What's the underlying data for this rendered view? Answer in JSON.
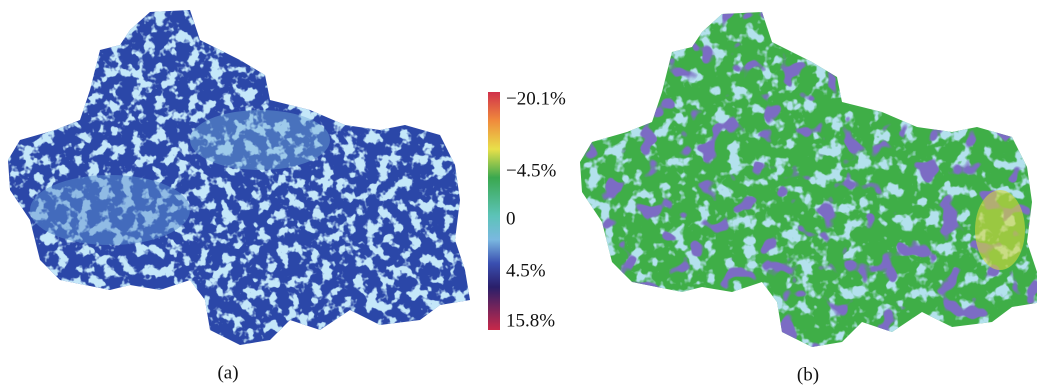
{
  "colorbar": {
    "labels": [
      "−20.1%",
      "−4.5%",
      "0",
      "4.5%",
      "15.8%"
    ]
  },
  "panels": [
    {
      "label": "(a)"
    },
    {
      "label": "(b)"
    }
  ]
}
